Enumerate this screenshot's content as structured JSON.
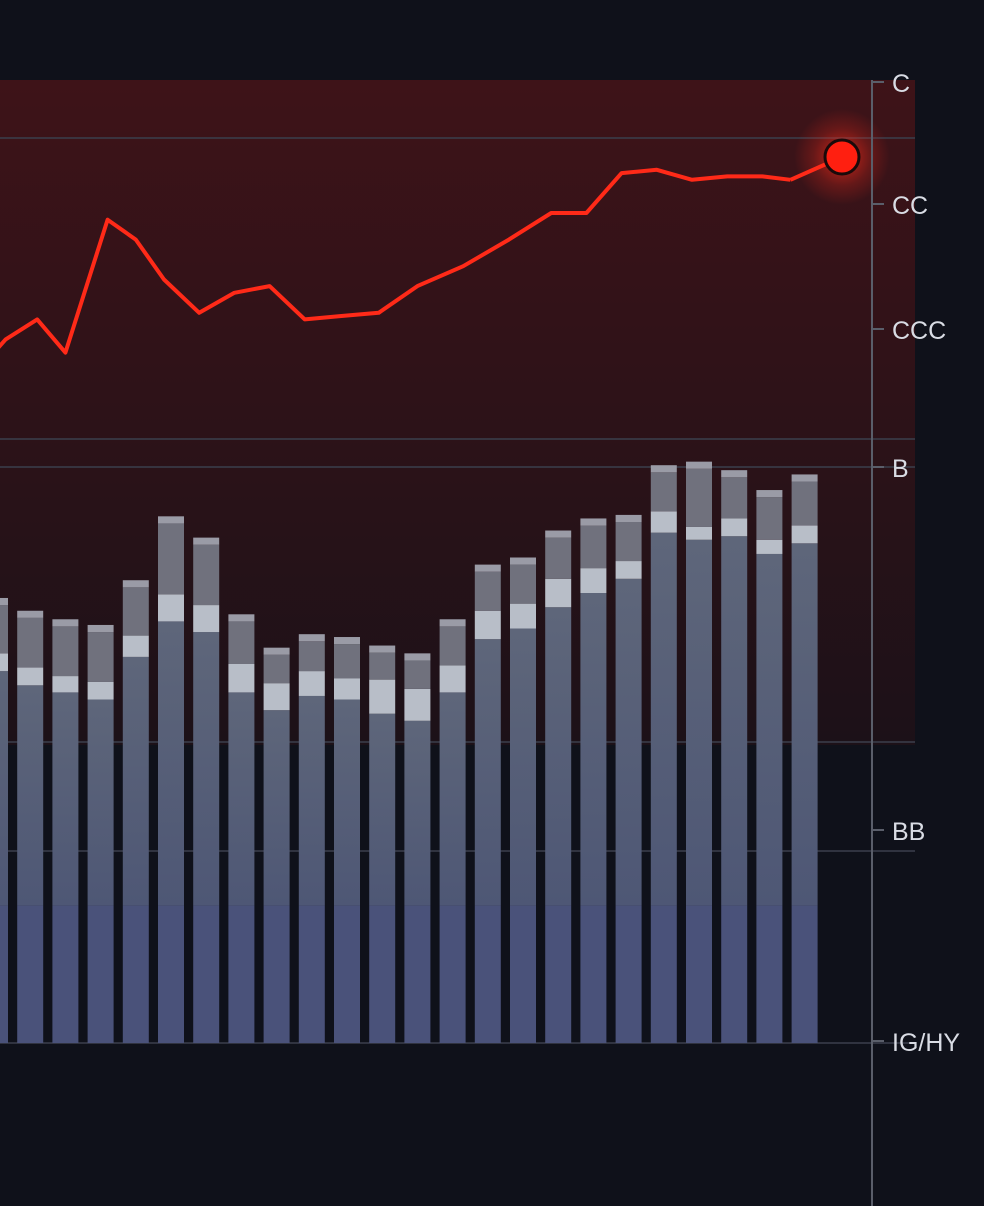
{
  "chart_data": {
    "type": "bar",
    "title": "",
    "xlabel": "",
    "ylabel": "",
    "y_axis": {
      "position": "right",
      "tick_labels": [
        "C",
        "CC",
        "CCC",
        "B",
        "BB",
        "IG/HY"
      ]
    },
    "x_range": [
      0,
      24
    ],
    "grid": true,
    "legend": "none",
    "series": [
      {
        "key": "base",
        "values": [
          850,
          850,
          850,
          850,
          850,
          850,
          850,
          850,
          850,
          850,
          850,
          850,
          850,
          850,
          850,
          850,
          850,
          850,
          850,
          850,
          850,
          850,
          850,
          850
        ]
      },
      {
        "key": "mid",
        "values": [
          330,
          310,
          300,
          290,
          350,
          400,
          385,
          300,
          275,
          295,
          290,
          270,
          260,
          300,
          375,
          390,
          420,
          440,
          460,
          525,
          515,
          520,
          495,
          510
        ]
      },
      {
        "key": "light",
        "values": [
          25,
          25,
          23,
          25,
          30,
          38,
          38,
          40,
          38,
          35,
          30,
          48,
          45,
          38,
          40,
          35,
          40,
          35,
          25,
          30,
          18,
          25,
          20,
          25
        ]
      },
      {
        "key": "gray",
        "values": [
          68,
          70,
          70,
          70,
          68,
          100,
          85,
          60,
          40,
          42,
          48,
          38,
          40,
          55,
          55,
          55,
          58,
          60,
          55,
          55,
          82,
          58,
          60,
          62
        ]
      },
      {
        "key": "topcap",
        "values": [
          10,
          10,
          10,
          10,
          10,
          10,
          10,
          10,
          10,
          10,
          10,
          10,
          10,
          10,
          10,
          10,
          10,
          10,
          10,
          10,
          10,
          10,
          10,
          10
        ]
      }
    ],
    "line": {
      "color": "#ff2a18",
      "values": [
        [
          -0.2,
          0.42
        ],
        [
          0.3,
          0.39
        ],
        [
          1.2,
          0.36
        ],
        [
          2.0,
          0.41
        ],
        [
          3.2,
          0.21
        ],
        [
          4.0,
          0.24
        ],
        [
          4.8,
          0.3
        ],
        [
          5.8,
          0.35
        ],
        [
          6.8,
          0.32
        ],
        [
          7.8,
          0.31
        ],
        [
          8.8,
          0.36
        ],
        [
          9.8,
          0.355
        ],
        [
          10.9,
          0.35
        ],
        [
          12.0,
          0.31
        ],
        [
          13.3,
          0.28
        ],
        [
          14.6,
          0.24
        ],
        [
          15.8,
          0.2
        ],
        [
          16.8,
          0.2
        ],
        [
          17.8,
          0.14
        ],
        [
          18.8,
          0.135
        ],
        [
          19.8,
          0.15
        ],
        [
          20.8,
          0.145
        ],
        [
          21.8,
          0.145
        ],
        [
          22.6,
          0.15
        ]
      ]
    },
    "latest_point_index": 23
  }
}
